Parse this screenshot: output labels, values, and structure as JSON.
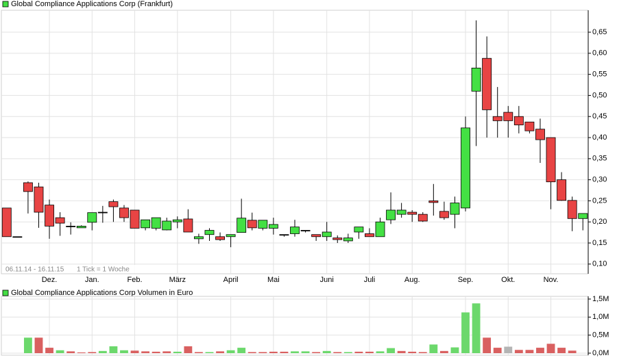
{
  "chart_data": [
    {
      "type": "candlestick",
      "title": "Global Compliance Applications Corp (Frankfurt)",
      "legend_color": "#44dd44",
      "up_color": "#44e044",
      "down_color": "#e84444",
      "flat_color": "#000000",
      "annotations": [
        "06.11.14 - 16.11.15",
        "1 Tick = 1 Woche"
      ],
      "categories": [
        null,
        null,
        null,
        null,
        "Dez.",
        null,
        null,
        null,
        "Jan.",
        null,
        null,
        null,
        "Feb.",
        null,
        null,
        null,
        "März",
        null,
        null,
        null,
        null,
        "April",
        null,
        null,
        null,
        "Mai",
        null,
        null,
        null,
        null,
        "Juni",
        null,
        null,
        null,
        "Juli",
        null,
        null,
        null,
        "Aug.",
        null,
        null,
        null,
        null,
        "Sep.",
        null,
        null,
        null,
        "Okt.",
        null,
        null,
        null,
        "Nov.",
        null,
        null,
        null
      ],
      "open": [
        0.233,
        0.165,
        0.293,
        0.283,
        0.24,
        0.21,
        0.19,
        0.186,
        0.199,
        0.223,
        0.248,
        0.233,
        0.228,
        0.186,
        0.185,
        0.181,
        0.2,
        0.207,
        0.16,
        0.17,
        0.165,
        0.165,
        0.175,
        0.204,
        0.185,
        0.185,
        0.17,
        0.172,
        0.18,
        0.17,
        0.165,
        0.162,
        0.155,
        0.176,
        0.172,
        0.165,
        0.205,
        0.218,
        0.223,
        0.218,
        0.25,
        0.225,
        0.218,
        0.233,
        0.51,
        0.588,
        0.45,
        0.46,
        0.45,
        0.437,
        0.42,
        0.4,
        0.3,
        0.251,
        0.208
      ],
      "high": [
        0.233,
        0.165,
        0.296,
        0.293,
        0.253,
        0.223,
        0.199,
        0.192,
        0.222,
        0.238,
        0.253,
        0.24,
        0.228,
        0.205,
        0.21,
        0.21,
        0.213,
        0.23,
        0.172,
        0.185,
        0.175,
        0.17,
        0.255,
        0.222,
        0.204,
        0.21,
        0.17,
        0.205,
        0.18,
        0.17,
        0.2,
        0.168,
        0.172,
        0.188,
        0.185,
        0.21,
        0.27,
        0.245,
        0.228,
        0.223,
        0.29,
        0.248,
        0.26,
        0.45,
        0.678,
        0.64,
        0.52,
        0.475,
        0.475,
        0.437,
        0.445,
        0.4,
        0.318,
        0.26,
        0.22
      ],
      "low": [
        0.165,
        0.165,
        0.22,
        0.186,
        0.16,
        0.167,
        0.17,
        0.186,
        0.18,
        0.198,
        0.2,
        0.2,
        0.185,
        0.18,
        0.18,
        0.18,
        0.185,
        0.176,
        0.148,
        0.155,
        0.155,
        0.14,
        0.175,
        0.18,
        0.18,
        0.17,
        0.165,
        0.165,
        0.175,
        0.155,
        0.155,
        0.15,
        0.15,
        0.16,
        0.165,
        0.165,
        0.195,
        0.21,
        0.2,
        0.2,
        0.215,
        0.205,
        0.185,
        0.225,
        0.38,
        0.4,
        0.4,
        0.4,
        0.41,
        0.41,
        0.34,
        0.23,
        0.25,
        0.178,
        0.18
      ],
      "close": [
        0.165,
        0.165,
        0.272,
        0.223,
        0.19,
        0.197,
        0.19,
        0.19,
        0.222,
        0.223,
        0.236,
        0.21,
        0.185,
        0.205,
        0.21,
        0.202,
        0.205,
        0.176,
        0.165,
        0.18,
        0.158,
        0.17,
        0.209,
        0.186,
        0.204,
        0.194,
        0.17,
        0.188,
        0.18,
        0.165,
        0.176,
        0.158,
        0.162,
        0.188,
        0.165,
        0.2,
        0.228,
        0.228,
        0.218,
        0.202,
        0.246,
        0.21,
        0.245,
        0.423,
        0.565,
        0.466,
        0.44,
        0.44,
        0.43,
        0.416,
        0.395,
        0.295,
        0.251,
        0.208,
        0.22
      ],
      "ylim": [
        0.077,
        0.702
      ],
      "yticks": [
        {
          "value": 0.1,
          "label": "0,10"
        },
        {
          "value": 0.15,
          "label": "0,15"
        },
        {
          "value": 0.2,
          "label": "0,20"
        },
        {
          "value": 0.25,
          "label": "0,25"
        },
        {
          "value": 0.3,
          "label": "0,30"
        },
        {
          "value": 0.35,
          "label": "0,35"
        },
        {
          "value": 0.4,
          "label": "0,40"
        },
        {
          "value": 0.45,
          "label": "0,45"
        },
        {
          "value": 0.5,
          "label": "0,50"
        },
        {
          "value": 0.55,
          "label": "0,55"
        },
        {
          "value": 0.6,
          "label": "0,60"
        },
        {
          "value": 0.65,
          "label": "0,65"
        }
      ],
      "grid": true
    },
    {
      "type": "bar",
      "title": "Global Compliance Applications Corp Volumen in Euro",
      "legend_color": "#44dd44",
      "values": [
        0,
        0,
        0.43,
        0.43,
        0.15,
        0.08,
        0.05,
        0.02,
        0.03,
        0.06,
        0.19,
        0.08,
        0.07,
        0.05,
        0.04,
        0.05,
        0.04,
        0.19,
        0.03,
        0.03,
        0.05,
        0.08,
        0.15,
        0.03,
        0.03,
        0.04,
        0.04,
        0.05,
        0.05,
        0.03,
        0.06,
        0.03,
        0.03,
        0.04,
        0.04,
        0.05,
        0.14,
        0.06,
        0.04,
        0.03,
        0.24,
        0.06,
        0.16,
        1.13,
        1.38,
        0.43,
        0.15,
        0.18,
        0.09,
        0.09,
        0.15,
        0.26,
        0.15,
        0.07,
        0
      ],
      "colors": [
        "#6cd86c",
        "#6cd86c",
        "#6cd86c",
        "#d96060",
        "#d96060",
        "#6cd86c",
        "#d96060",
        "#d96060",
        "#d96060",
        "#6cd86c",
        "#6cd86c",
        "#6cd86c",
        "#d96060",
        "#d96060",
        "#d96060",
        "#d96060",
        "#6cd86c",
        "#d96060",
        "#d96060",
        "#6cd86c",
        "#d96060",
        "#6cd86c",
        "#6cd86c",
        "#d96060",
        "#d96060",
        "#d96060",
        "#d96060",
        "#6cd86c",
        "#6cd86c",
        "#d96060",
        "#6cd86c",
        "#d96060",
        "#6cd86c",
        "#d96060",
        "#d96060",
        "#6cd86c",
        "#6cd86c",
        "#d96060",
        "#d96060",
        "#d96060",
        "#6cd86c",
        "#d96060",
        "#6cd86c",
        "#6cd86c",
        "#6cd86c",
        "#d96060",
        "#d96060",
        "#b4b4b4",
        "#d96060",
        "#d96060",
        "#d96060",
        "#d96060",
        "#d96060",
        "#d96060",
        "#6cd86c"
      ],
      "ylim": [
        -0.057,
        1.575
      ],
      "yticks": [
        {
          "value": 0,
          "label": "0,0M"
        },
        {
          "value": 0.5,
          "label": "0,5M"
        },
        {
          "value": 1,
          "label": "1,0M"
        },
        {
          "value": 1.5,
          "label": "1,5M"
        }
      ],
      "grid": true
    }
  ]
}
